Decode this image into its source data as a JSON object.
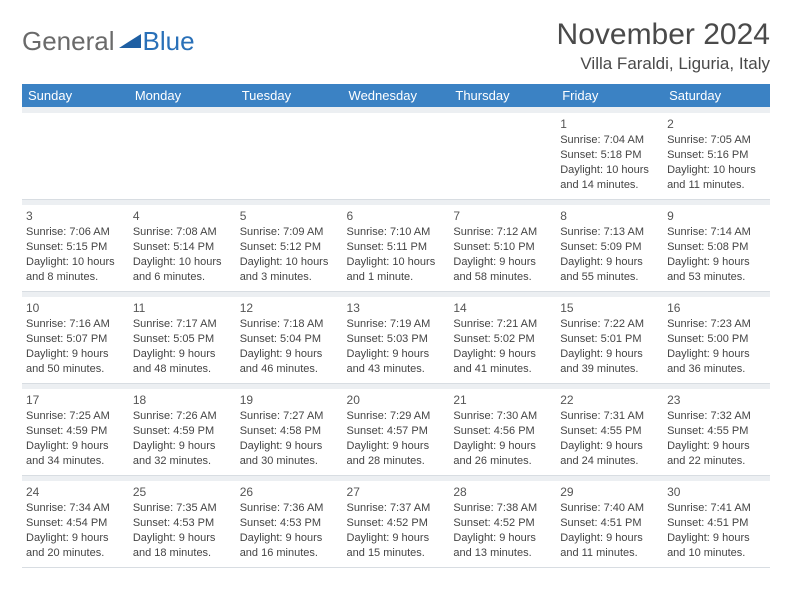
{
  "logo": {
    "general": "General",
    "blue": "Blue",
    "triangle_color": "#1e5fa3"
  },
  "title": {
    "month": "November 2024",
    "location": "Villa Faraldi, Liguria, Italy"
  },
  "colors": {
    "header_bg": "#3b82c4",
    "header_fg": "#ffffff",
    "spacer_bg": "#eceff2",
    "cell_border": "#d8dde2",
    "text": "#444444"
  },
  "weekdays": [
    "Sunday",
    "Monday",
    "Tuesday",
    "Wednesday",
    "Thursday",
    "Friday",
    "Saturday"
  ],
  "weeks": [
    [
      null,
      null,
      null,
      null,
      null,
      {
        "n": "1",
        "sunrise": "7:04 AM",
        "sunset": "5:18 PM",
        "daylight": "10 hours and 14 minutes."
      },
      {
        "n": "2",
        "sunrise": "7:05 AM",
        "sunset": "5:16 PM",
        "daylight": "10 hours and 11 minutes."
      }
    ],
    [
      {
        "n": "3",
        "sunrise": "7:06 AM",
        "sunset": "5:15 PM",
        "daylight": "10 hours and 8 minutes."
      },
      {
        "n": "4",
        "sunrise": "7:08 AM",
        "sunset": "5:14 PM",
        "daylight": "10 hours and 6 minutes."
      },
      {
        "n": "5",
        "sunrise": "7:09 AM",
        "sunset": "5:12 PM",
        "daylight": "10 hours and 3 minutes."
      },
      {
        "n": "6",
        "sunrise": "7:10 AM",
        "sunset": "5:11 PM",
        "daylight": "10 hours and 1 minute."
      },
      {
        "n": "7",
        "sunrise": "7:12 AM",
        "sunset": "5:10 PM",
        "daylight": "9 hours and 58 minutes."
      },
      {
        "n": "8",
        "sunrise": "7:13 AM",
        "sunset": "5:09 PM",
        "daylight": "9 hours and 55 minutes."
      },
      {
        "n": "9",
        "sunrise": "7:14 AM",
        "sunset": "5:08 PM",
        "daylight": "9 hours and 53 minutes."
      }
    ],
    [
      {
        "n": "10",
        "sunrise": "7:16 AM",
        "sunset": "5:07 PM",
        "daylight": "9 hours and 50 minutes."
      },
      {
        "n": "11",
        "sunrise": "7:17 AM",
        "sunset": "5:05 PM",
        "daylight": "9 hours and 48 minutes."
      },
      {
        "n": "12",
        "sunrise": "7:18 AM",
        "sunset": "5:04 PM",
        "daylight": "9 hours and 46 minutes."
      },
      {
        "n": "13",
        "sunrise": "7:19 AM",
        "sunset": "5:03 PM",
        "daylight": "9 hours and 43 minutes."
      },
      {
        "n": "14",
        "sunrise": "7:21 AM",
        "sunset": "5:02 PM",
        "daylight": "9 hours and 41 minutes."
      },
      {
        "n": "15",
        "sunrise": "7:22 AM",
        "sunset": "5:01 PM",
        "daylight": "9 hours and 39 minutes."
      },
      {
        "n": "16",
        "sunrise": "7:23 AM",
        "sunset": "5:00 PM",
        "daylight": "9 hours and 36 minutes."
      }
    ],
    [
      {
        "n": "17",
        "sunrise": "7:25 AM",
        "sunset": "4:59 PM",
        "daylight": "9 hours and 34 minutes."
      },
      {
        "n": "18",
        "sunrise": "7:26 AM",
        "sunset": "4:59 PM",
        "daylight": "9 hours and 32 minutes."
      },
      {
        "n": "19",
        "sunrise": "7:27 AM",
        "sunset": "4:58 PM",
        "daylight": "9 hours and 30 minutes."
      },
      {
        "n": "20",
        "sunrise": "7:29 AM",
        "sunset": "4:57 PM",
        "daylight": "9 hours and 28 minutes."
      },
      {
        "n": "21",
        "sunrise": "7:30 AM",
        "sunset": "4:56 PM",
        "daylight": "9 hours and 26 minutes."
      },
      {
        "n": "22",
        "sunrise": "7:31 AM",
        "sunset": "4:55 PM",
        "daylight": "9 hours and 24 minutes."
      },
      {
        "n": "23",
        "sunrise": "7:32 AM",
        "sunset": "4:55 PM",
        "daylight": "9 hours and 22 minutes."
      }
    ],
    [
      {
        "n": "24",
        "sunrise": "7:34 AM",
        "sunset": "4:54 PM",
        "daylight": "9 hours and 20 minutes."
      },
      {
        "n": "25",
        "sunrise": "7:35 AM",
        "sunset": "4:53 PM",
        "daylight": "9 hours and 18 minutes."
      },
      {
        "n": "26",
        "sunrise": "7:36 AM",
        "sunset": "4:53 PM",
        "daylight": "9 hours and 16 minutes."
      },
      {
        "n": "27",
        "sunrise": "7:37 AM",
        "sunset": "4:52 PM",
        "daylight": "9 hours and 15 minutes."
      },
      {
        "n": "28",
        "sunrise": "7:38 AM",
        "sunset": "4:52 PM",
        "daylight": "9 hours and 13 minutes."
      },
      {
        "n": "29",
        "sunrise": "7:40 AM",
        "sunset": "4:51 PM",
        "daylight": "9 hours and 11 minutes."
      },
      {
        "n": "30",
        "sunrise": "7:41 AM",
        "sunset": "4:51 PM",
        "daylight": "9 hours and 10 minutes."
      }
    ]
  ]
}
